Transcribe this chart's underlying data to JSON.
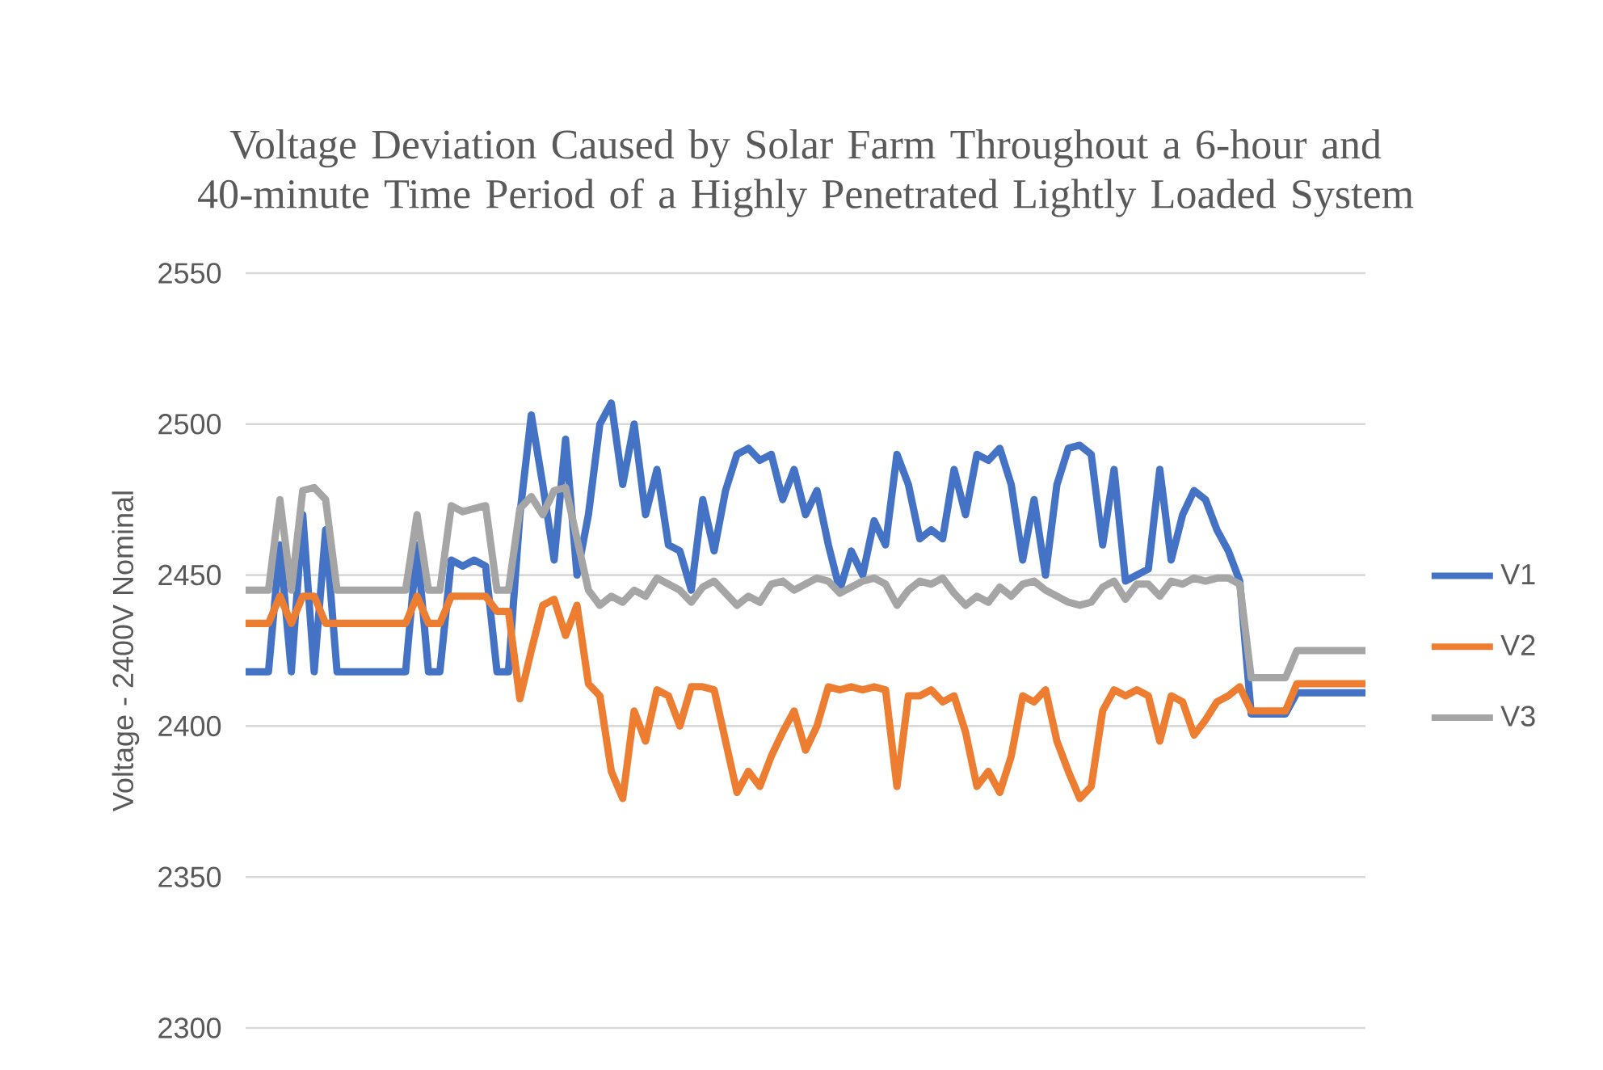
{
  "chart_data": {
    "type": "line",
    "title": "Voltage Deviation Caused by Solar Farm Throughout a 6-hour and 40-minute Time Period of a Highly Penetrated Lightly Loaded System",
    "ylabel": "Voltage - 2400V Nominal",
    "categories": [
      null,
      null,
      null,
      null,
      null,
      null,
      null,
      null,
      null,
      null,
      null,
      null,
      null,
      null,
      null,
      null,
      null,
      null,
      null,
      null,
      null,
      null,
      null,
      null,
      null,
      null,
      null,
      null,
      null,
      null,
      null,
      null,
      null,
      null,
      null,
      null,
      null,
      null,
      null,
      null,
      null,
      null,
      null,
      null,
      null,
      null,
      null,
      null,
      null,
      null,
      null,
      null,
      null,
      null,
      null,
      null,
      null,
      null,
      null,
      null,
      null,
      null,
      null,
      null,
      null,
      null,
      null,
      null,
      null,
      null,
      null,
      null,
      null,
      null,
      null,
      null,
      null,
      null,
      null,
      null,
      null,
      null,
      null,
      null,
      null,
      null,
      null,
      null,
      null,
      null,
      null,
      null,
      null,
      null,
      null,
      null,
      null,
      null,
      null
    ],
    "series": [
      {
        "name": "V1",
        "color": "#4472c4",
        "values": [
          2418,
          2418,
          2418,
          2460,
          2418,
          2470,
          2418,
          2465,
          2418,
          2418,
          2418,
          2418,
          2418,
          2418,
          2418,
          2460,
          2418,
          2418,
          2455,
          2453,
          2455,
          2453,
          2418,
          2418,
          2470,
          2503,
          2480,
          2455,
          2495,
          2450,
          2470,
          2500,
          2507,
          2480,
          2500,
          2470,
          2485,
          2460,
          2458,
          2445,
          2475,
          2458,
          2478,
          2490,
          2492,
          2488,
          2490,
          2475,
          2485,
          2470,
          2478,
          2460,
          2445,
          2458,
          2450,
          2468,
          2460,
          2490,
          2480,
          2462,
          2465,
          2462,
          2485,
          2470,
          2490,
          2488,
          2492,
          2480,
          2455,
          2475,
          2450,
          2480,
          2492,
          2493,
          2490,
          2460,
          2485,
          2448,
          2450,
          2452,
          2485,
          2455,
          2470,
          2478,
          2475,
          2465,
          2458,
          2448,
          2404,
          2404,
          2404,
          2404,
          2411,
          2411,
          2411,
          2411,
          2411,
          2411,
          2411
        ]
      },
      {
        "name": "V2",
        "color": "#ed7d31",
        "values": [
          2434,
          2434,
          2434,
          2443,
          2434,
          2443,
          2443,
          2434,
          2434,
          2434,
          2434,
          2434,
          2434,
          2434,
          2434,
          2443,
          2434,
          2434,
          2443,
          2443,
          2443,
          2443,
          2438,
          2438,
          2409,
          2425,
          2440,
          2442,
          2430,
          2440,
          2414,
          2410,
          2385,
          2376,
          2405,
          2395,
          2412,
          2410,
          2400,
          2413,
          2413,
          2412,
          2395,
          2378,
          2385,
          2380,
          2390,
          2398,
          2405,
          2392,
          2400,
          2413,
          2412,
          2413,
          2412,
          2413,
          2412,
          2380,
          2410,
          2410,
          2412,
          2408,
          2410,
          2398,
          2380,
          2385,
          2378,
          2390,
          2410,
          2408,
          2412,
          2395,
          2385,
          2376,
          2380,
          2405,
          2412,
          2410,
          2412,
          2410,
          2395,
          2410,
          2408,
          2397,
          2402,
          2408,
          2410,
          2413,
          2405,
          2405,
          2405,
          2405,
          2414,
          2414,
          2414,
          2414,
          2414,
          2414,
          2414
        ]
      },
      {
        "name": "V3",
        "color": "#a5a5a5",
        "values": [
          2445,
          2445,
          2445,
          2475,
          2445,
          2478,
          2479,
          2475,
          2445,
          2445,
          2445,
          2445,
          2445,
          2445,
          2445,
          2470,
          2445,
          2445,
          2473,
          2471,
          2472,
          2473,
          2445,
          2445,
          2472,
          2476,
          2470,
          2478,
          2479,
          2462,
          2445,
          2440,
          2443,
          2441,
          2445,
          2443,
          2449,
          2447,
          2445,
          2441,
          2446,
          2448,
          2444,
          2440,
          2443,
          2441,
          2447,
          2448,
          2445,
          2447,
          2449,
          2448,
          2444,
          2446,
          2448,
          2449,
          2447,
          2440,
          2445,
          2448,
          2447,
          2449,
          2444,
          2440,
          2443,
          2441,
          2446,
          2443,
          2447,
          2448,
          2445,
          2443,
          2441,
          2440,
          2441,
          2446,
          2448,
          2442,
          2447,
          2447,
          2443,
          2448,
          2447,
          2449,
          2448,
          2449,
          2449,
          2447,
          2416,
          2416,
          2416,
          2416,
          2425,
          2425,
          2425,
          2425,
          2425,
          2425,
          2425
        ]
      }
    ],
    "ylim": [
      2300,
      2550
    ],
    "yticks": [
      2300,
      2350,
      2400,
      2450,
      2500,
      2550
    ],
    "grid": "y",
    "legend": "right",
    "tick_labels": "y",
    "marker": "none",
    "line_style": "solid"
  }
}
